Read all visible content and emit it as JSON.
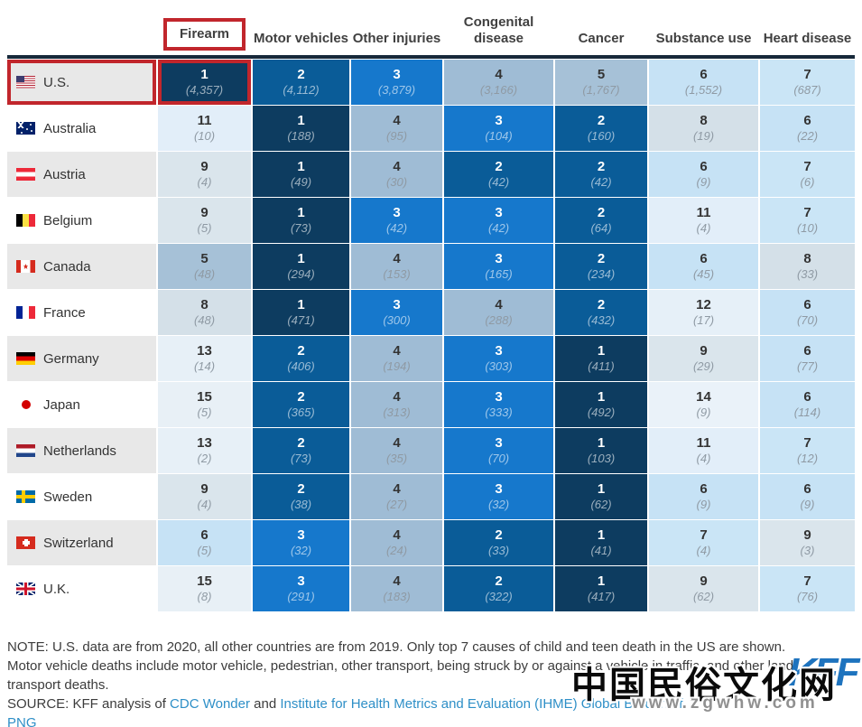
{
  "chart_data": {
    "type": "heatmap",
    "description": "Rank of cause of child and teen death by country; cell shows rank and (number of deaths)",
    "columns": [
      {
        "label": "Firearm",
        "highlighted": true
      },
      {
        "label": "Motor vehicles",
        "highlighted": false
      },
      {
        "label": "Other injuries",
        "highlighted": false
      },
      {
        "label": "Congenital disease",
        "highlighted": false
      },
      {
        "label": "Cancer",
        "highlighted": false
      },
      {
        "label": "Substance use",
        "highlighted": false
      },
      {
        "label": "Heart disease",
        "highlighted": false
      }
    ],
    "rows": [
      {
        "country": "U.S.",
        "flag": "us",
        "row_highlighted": true,
        "cells": [
          {
            "rank": 1,
            "count": "4,357",
            "highlighted": true
          },
          {
            "rank": 2,
            "count": "4,112"
          },
          {
            "rank": 3,
            "count": "3,879"
          },
          {
            "rank": 4,
            "count": "3,166"
          },
          {
            "rank": 5,
            "count": "1,767"
          },
          {
            "rank": 6,
            "count": "1,552"
          },
          {
            "rank": 7,
            "count": "687"
          }
        ]
      },
      {
        "country": "Australia",
        "flag": "au",
        "cells": [
          {
            "rank": 11,
            "count": "10"
          },
          {
            "rank": 1,
            "count": "188"
          },
          {
            "rank": 4,
            "count": "95"
          },
          {
            "rank": 3,
            "count": "104"
          },
          {
            "rank": 2,
            "count": "160"
          },
          {
            "rank": 8,
            "count": "19"
          },
          {
            "rank": 6,
            "count": "22"
          }
        ]
      },
      {
        "country": "Austria",
        "flag": "at",
        "cells": [
          {
            "rank": 9,
            "count": "4"
          },
          {
            "rank": 1,
            "count": "49"
          },
          {
            "rank": 4,
            "count": "30"
          },
          {
            "rank": 2,
            "count": "42"
          },
          {
            "rank": 2,
            "count": "42"
          },
          {
            "rank": 6,
            "count": "9"
          },
          {
            "rank": 7,
            "count": "6"
          }
        ]
      },
      {
        "country": "Belgium",
        "flag": "be",
        "cells": [
          {
            "rank": 9,
            "count": "5"
          },
          {
            "rank": 1,
            "count": "73"
          },
          {
            "rank": 3,
            "count": "42"
          },
          {
            "rank": 3,
            "count": "42"
          },
          {
            "rank": 2,
            "count": "64"
          },
          {
            "rank": 11,
            "count": "4"
          },
          {
            "rank": 7,
            "count": "10"
          }
        ]
      },
      {
        "country": "Canada",
        "flag": "ca",
        "cells": [
          {
            "rank": 5,
            "count": "48"
          },
          {
            "rank": 1,
            "count": "294"
          },
          {
            "rank": 4,
            "count": "153"
          },
          {
            "rank": 3,
            "count": "165"
          },
          {
            "rank": 2,
            "count": "234"
          },
          {
            "rank": 6,
            "count": "45"
          },
          {
            "rank": 8,
            "count": "33"
          }
        ]
      },
      {
        "country": "France",
        "flag": "fr",
        "cells": [
          {
            "rank": 8,
            "count": "48"
          },
          {
            "rank": 1,
            "count": "471"
          },
          {
            "rank": 3,
            "count": "300"
          },
          {
            "rank": 4,
            "count": "288"
          },
          {
            "rank": 2,
            "count": "432"
          },
          {
            "rank": 12,
            "count": "17"
          },
          {
            "rank": 6,
            "count": "70"
          }
        ]
      },
      {
        "country": "Germany",
        "flag": "de",
        "cells": [
          {
            "rank": 13,
            "count": "14"
          },
          {
            "rank": 2,
            "count": "406"
          },
          {
            "rank": 4,
            "count": "194"
          },
          {
            "rank": 3,
            "count": "303"
          },
          {
            "rank": 1,
            "count": "411"
          },
          {
            "rank": 9,
            "count": "29"
          },
          {
            "rank": 6,
            "count": "77"
          }
        ]
      },
      {
        "country": "Japan",
        "flag": "jp",
        "cells": [
          {
            "rank": 15,
            "count": "5"
          },
          {
            "rank": 2,
            "count": "365"
          },
          {
            "rank": 4,
            "count": "313"
          },
          {
            "rank": 3,
            "count": "333"
          },
          {
            "rank": 1,
            "count": "492"
          },
          {
            "rank": 14,
            "count": "9"
          },
          {
            "rank": 6,
            "count": "114"
          }
        ]
      },
      {
        "country": "Netherlands",
        "flag": "nl",
        "cells": [
          {
            "rank": 13,
            "count": "2"
          },
          {
            "rank": 2,
            "count": "73"
          },
          {
            "rank": 4,
            "count": "35"
          },
          {
            "rank": 3,
            "count": "70"
          },
          {
            "rank": 1,
            "count": "103"
          },
          {
            "rank": 11,
            "count": "4"
          },
          {
            "rank": 7,
            "count": "12"
          }
        ]
      },
      {
        "country": "Sweden",
        "flag": "se",
        "cells": [
          {
            "rank": 9,
            "count": "4"
          },
          {
            "rank": 2,
            "count": "38"
          },
          {
            "rank": 4,
            "count": "27"
          },
          {
            "rank": 3,
            "count": "32"
          },
          {
            "rank": 1,
            "count": "62"
          },
          {
            "rank": 6,
            "count": "9"
          },
          {
            "rank": 6,
            "count": "9"
          }
        ]
      },
      {
        "country": "Switzerland",
        "flag": "ch",
        "cells": [
          {
            "rank": 6,
            "count": "5"
          },
          {
            "rank": 3,
            "count": "32"
          },
          {
            "rank": 4,
            "count": "24"
          },
          {
            "rank": 2,
            "count": "33"
          },
          {
            "rank": 1,
            "count": "41"
          },
          {
            "rank": 7,
            "count": "4"
          },
          {
            "rank": 9,
            "count": "3"
          }
        ]
      },
      {
        "country": "U.K.",
        "flag": "uk",
        "cells": [
          {
            "rank": 15,
            "count": "8"
          },
          {
            "rank": 3,
            "count": "291"
          },
          {
            "rank": 4,
            "count": "183"
          },
          {
            "rank": 2,
            "count": "322"
          },
          {
            "rank": 1,
            "count": "417"
          },
          {
            "rank": 9,
            "count": "62"
          },
          {
            "rank": 7,
            "count": "76"
          }
        ]
      }
    ],
    "rank_colors": {
      "1": "#0d3c60",
      "2": "#0a5c98",
      "3": "#1678cc",
      "4": "#9fbcd5",
      "5": "#a6c1d7",
      "6": "#c6e2f5",
      "7": "#cae5f6",
      "8": "#d4e0e8",
      "9": "#dae5ec",
      "11": "#e2eef9",
      "12": "#e6f0f8",
      "13": "#e7f0f7",
      "14": "#eaf2f9",
      "15": "#e8f0f6"
    },
    "highlight_color": "#c1262c"
  },
  "footer": {
    "note_line1": "NOTE: U.S. data are from 2020, all other countries are from 2019. Only top 7 causes of child and teen death in the US are shown.",
    "note_line2": "Motor vehicle deaths include motor vehicle, pedestrian, other transport, being struck by or against a vehicle in traffic, and other land transport deaths.",
    "source_prefix": "SOURCE: KFF analysis of ",
    "source_link1": "CDC Wonder",
    "source_mid": " and ",
    "source_link2": "Institute for Health Metrics and Evaluation (IHME) Global Burden of",
    "png_link": "PNG",
    "link_color": "#2e8fc7"
  },
  "logo": {
    "text": "KFF",
    "color": "#1e73be"
  },
  "watermark": {
    "line1": "中国民俗文化网",
    "line2": "www.zgwhw.com"
  }
}
